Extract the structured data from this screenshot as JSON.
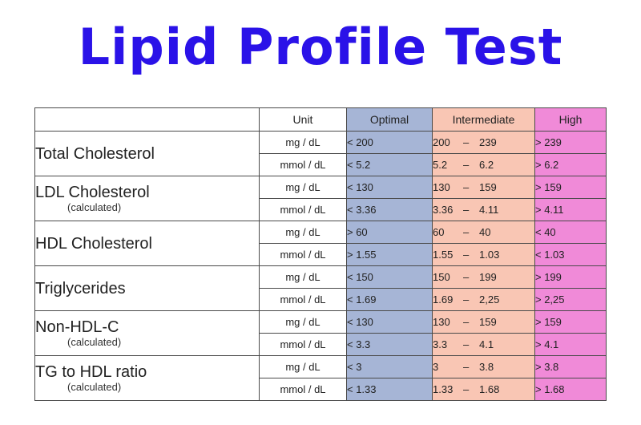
{
  "title": "Lipid Profile Test",
  "headers": {
    "name": "",
    "unit": "Unit",
    "optimal": "Optimal",
    "intermediate": "Intermediate",
    "high": "High"
  },
  "colors": {
    "title": "#2a12e8",
    "optimal": "#a6b5d6",
    "intermediate": "#f9c6b4",
    "high": "#f08ad8"
  },
  "dash": "–",
  "rows": [
    {
      "name": "Total Cholesterol",
      "sub": "",
      "r1": {
        "unit": "mg / dL",
        "optimal": "< 200",
        "int_lo": "200",
        "int_hi": "239",
        "high": "> 239"
      },
      "r2": {
        "unit": "mmol / dL",
        "optimal": "< 5.2",
        "int_lo": "5.2",
        "int_hi": "6.2",
        "high": "> 6.2"
      }
    },
    {
      "name": "LDL Cholesterol",
      "sub": "(calculated)",
      "r1": {
        "unit": "mg / dL",
        "optimal": "< 130",
        "int_lo": "130",
        "int_hi": "159",
        "high": "> 159"
      },
      "r2": {
        "unit": "mmol / dL",
        "optimal": "< 3.36",
        "int_lo": "3.36",
        "int_hi": "4.11",
        "high": "> 4.11"
      }
    },
    {
      "name": "HDL Cholesterol",
      "sub": "",
      "r1": {
        "unit": "mg / dL",
        "optimal": "> 60",
        "int_lo": "60",
        "int_hi": "40",
        "high": "< 40"
      },
      "r2": {
        "unit": "mmol / dL",
        "optimal": "> 1.55",
        "int_lo": "1.55",
        "int_hi": "1.03",
        "high": "< 1.03"
      }
    },
    {
      "name": "Triglycerides",
      "sub": "",
      "r1": {
        "unit": "mg / dL",
        "optimal": "< 150",
        "int_lo": "150",
        "int_hi": "199",
        "high": "> 199"
      },
      "r2": {
        "unit": "mmol / dL",
        "optimal": "< 1.69",
        "int_lo": "1.69",
        "int_hi": "2,25",
        "high": "> 2,25"
      }
    },
    {
      "name": "Non-HDL-C",
      "sub": "(calculated)",
      "r1": {
        "unit": "mg / dL",
        "optimal": "< 130",
        "int_lo": "130",
        "int_hi": "159",
        "high": "> 159"
      },
      "r2": {
        "unit": "mmol / dL",
        "optimal": "< 3.3",
        "int_lo": "3.3",
        "int_hi": "4.1",
        "high": "> 4.1"
      }
    },
    {
      "name": "TG to HDL ratio",
      "sub": "(calculated)",
      "r1": {
        "unit": "mg / dL",
        "optimal": "< 3",
        "int_lo": "3",
        "int_hi": "3.8",
        "high": "> 3.8"
      },
      "r2": {
        "unit": "mmol / dL",
        "optimal": "< 1.33",
        "int_lo": "1.33",
        "int_hi": "1.68",
        "high": "> 1.68"
      }
    }
  ]
}
